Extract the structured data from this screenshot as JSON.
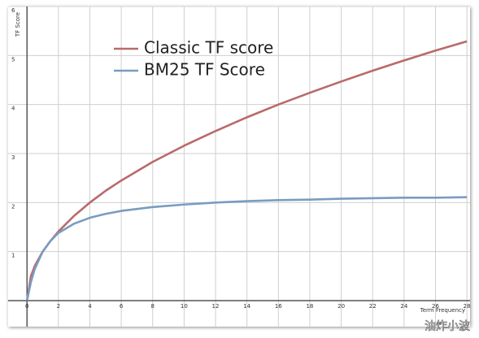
{
  "chart_data": {
    "type": "line",
    "x_label": "Term Frequency",
    "y_label": "TF Score",
    "x": [
      0,
      0.25,
      0.5,
      1,
      1.5,
      2,
      3,
      4,
      5,
      6,
      8,
      10,
      12,
      14,
      16,
      18,
      20,
      22,
      24,
      26,
      28
    ],
    "series": [
      {
        "name": "Classic TF score",
        "color": "#b96a6a",
        "values": [
          0,
          0.5,
          0.71,
          1,
          1.22,
          1.41,
          1.73,
          2,
          2.24,
          2.45,
          2.83,
          3.16,
          3.46,
          3.74,
          4,
          4.24,
          4.47,
          4.69,
          4.9,
          5.1,
          5.29
        ]
      },
      {
        "name": "BM25 TF Score",
        "color": "#7a9cc0",
        "values": [
          0,
          0.38,
          0.65,
          1,
          1.22,
          1.38,
          1.57,
          1.69,
          1.77,
          1.83,
          1.91,
          1.96,
          2.0,
          2.03,
          2.05,
          2.06,
          2.08,
          2.09,
          2.1,
          2.1,
          2.11
        ]
      }
    ],
    "xlim": [
      -1.2,
      28.2
    ],
    "ylim": [
      -0.53,
      6
    ],
    "xticks": [
      0,
      2,
      4,
      6,
      8,
      10,
      12,
      14,
      16,
      18,
      20,
      22,
      24,
      26,
      28
    ],
    "yticks": [
      1,
      2,
      3,
      4,
      5,
      6
    ],
    "grid": true
  },
  "watermark": "油炸小波"
}
